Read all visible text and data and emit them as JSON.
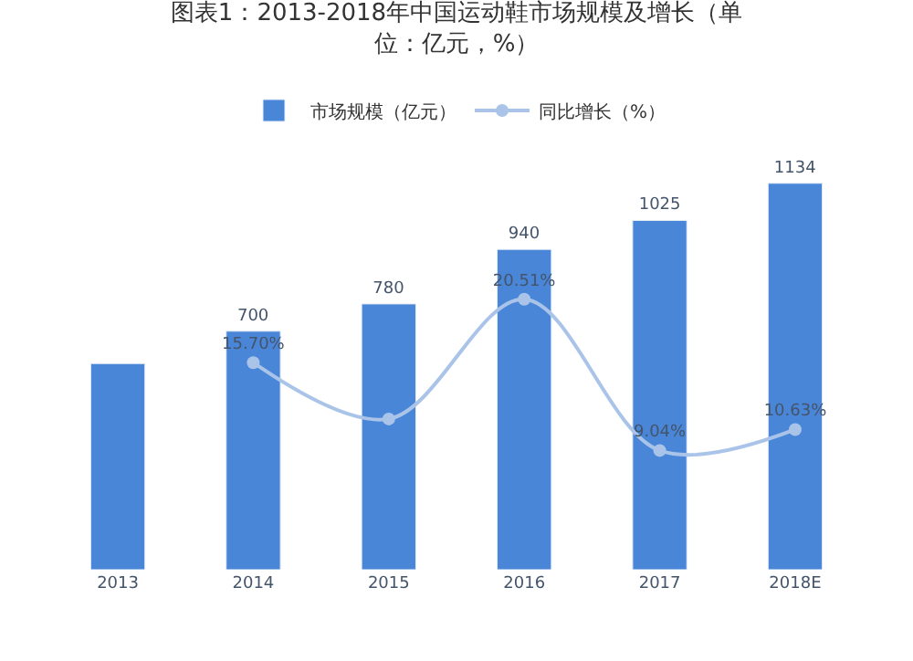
{
  "chart_data": {
    "type": "bar",
    "title": "图表1：2013-2018年中国运动鞋市场规模及增长（单位：亿元，%）",
    "categories": [
      "2013",
      "2014",
      "2015",
      "2016",
      "2017",
      "2018E"
    ],
    "series": [
      {
        "name": "市场规模（亿元）",
        "color": "#4a86d8",
        "values": [
          605,
          700,
          780,
          940,
          1025,
          1134
        ],
        "value_labels": [
          null,
          "700",
          "780",
          "940",
          "1025",
          "1134"
        ]
      },
      {
        "name": "同比增长（%）",
        "type": "line",
        "axis": "y2",
        "color": "#a9c4e8",
        "values": [
          null,
          15.7,
          11.43,
          20.51,
          9.04,
          10.63
        ],
        "value_labels": [
          null,
          "15.70%",
          null,
          "20.51%",
          "9.04%",
          "10.63%"
        ]
      }
    ],
    "tick_labels": "x",
    "legend": "top",
    "marker": "circle",
    "line_style": "solid"
  }
}
